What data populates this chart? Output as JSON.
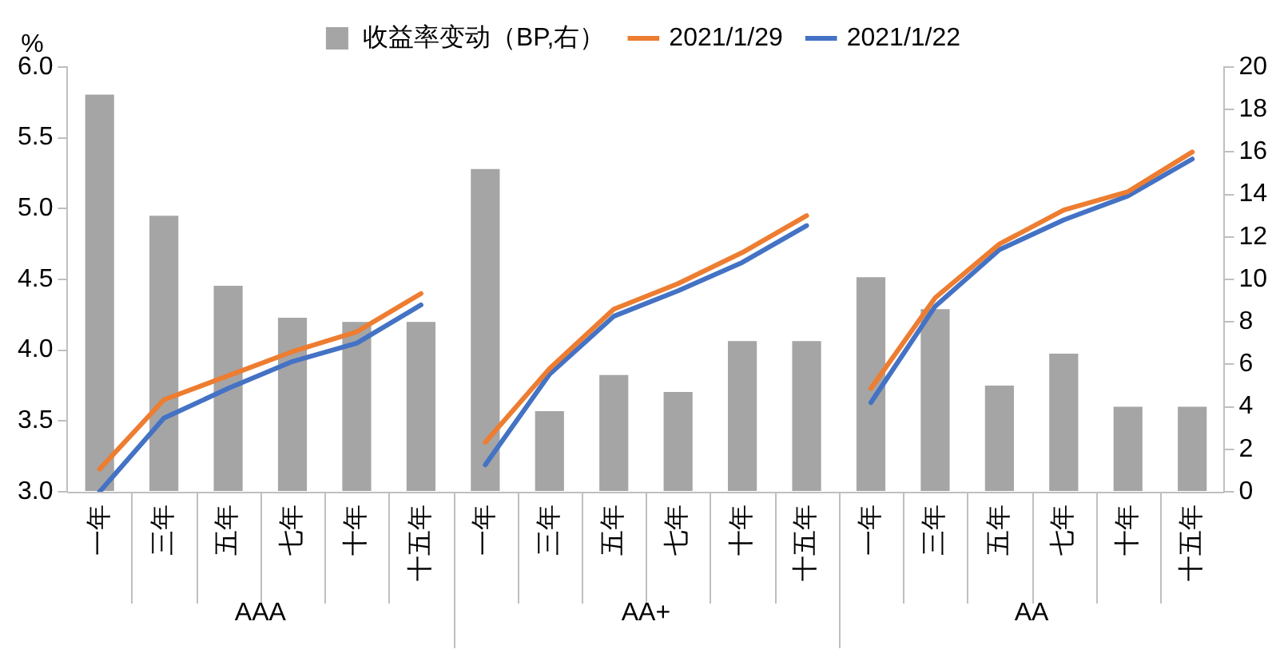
{
  "chart_data": {
    "type": "line",
    "categories": [
      "一年",
      "三年",
      "五年",
      "七年",
      "十年",
      "十五年",
      "一年",
      "三年",
      "五年",
      "七年",
      "十年",
      "十五年",
      "一年",
      "三年",
      "五年",
      "七年",
      "十年",
      "十五年"
    ],
    "series": [
      {
        "name": "收益率变动（BP,右）",
        "type": "bar",
        "axis": "y2",
        "color": "#a5a5a5",
        "values": [
          18.7,
          13.0,
          9.7,
          8.2,
          8.0,
          8.0,
          15.2,
          3.8,
          5.5,
          4.7,
          7.1,
          7.1,
          10.1,
          8.6,
          5.0,
          6.5,
          4.0,
          4.0
        ]
      },
      {
        "name": "2021/1/29",
        "color": "#ed7d31",
        "values": [
          3.16,
          3.65,
          3.82,
          3.99,
          4.13,
          4.4,
          3.35,
          3.87,
          4.29,
          4.47,
          4.69,
          4.95,
          3.73,
          4.37,
          4.75,
          4.99,
          5.12,
          5.4
        ]
      },
      {
        "name": "2021/1/22",
        "color": "#4472c4",
        "values": [
          3.0,
          3.52,
          3.73,
          3.92,
          4.05,
          4.32,
          3.19,
          3.83,
          4.24,
          4.42,
          4.62,
          4.88,
          3.63,
          4.31,
          4.71,
          4.92,
          5.09,
          5.35
        ]
      }
    ],
    "ylabel": "%",
    "ylim": [
      3.0,
      6.0
    ],
    "yticks": [
      {
        "value": 3,
        "label": "3.0"
      },
      {
        "value": 3.5,
        "label": "3.5"
      },
      {
        "value": 4,
        "label": "4.0"
      },
      {
        "value": 4.5,
        "label": "4.5"
      },
      {
        "value": 5,
        "label": "5.0"
      },
      {
        "value": 5.5,
        "label": "5.5"
      },
      {
        "value": 6,
        "label": "6.0"
      }
    ],
    "y2lim": [
      0,
      20
    ],
    "y2ticks": [
      0,
      2,
      4,
      6,
      8,
      10,
      12,
      14,
      16,
      18,
      20
    ],
    "annotations": [
      "AAA",
      "AA+",
      "AA"
    ],
    "legend": "top",
    "grid": false,
    "marker": "none"
  }
}
